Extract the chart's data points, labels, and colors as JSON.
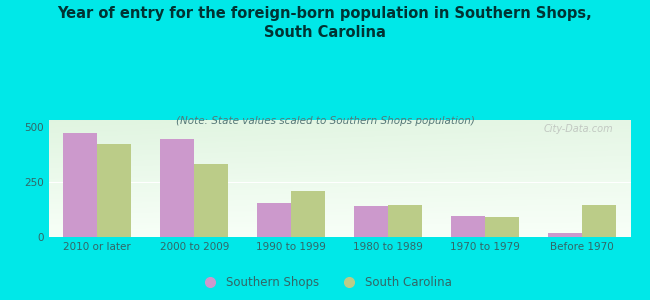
{
  "title": "Year of entry for the foreign-born population in Southern Shops,\nSouth Carolina",
  "subtitle": "(Note: State values scaled to Southern Shops population)",
  "categories": [
    "2010 or later",
    "2000 to 2009",
    "1990 to 1999",
    "1980 to 1989",
    "1970 to 1979",
    "Before 1970"
  ],
  "southern_shops": [
    470,
    445,
    155,
    140,
    95,
    20
  ],
  "south_carolina": [
    420,
    330,
    210,
    145,
    90,
    145
  ],
  "color_ss": "#cc99cc",
  "color_sc": "#bbcc88",
  "bg_color": "#00e8e8",
  "ylim": [
    0,
    530
  ],
  "yticks": [
    0,
    250,
    500
  ],
  "bar_width": 0.35,
  "title_fontsize": 10.5,
  "subtitle_fontsize": 7.5,
  "tick_fontsize": 7.5,
  "legend_fontsize": 8.5,
  "watermark": "City-Data.com"
}
